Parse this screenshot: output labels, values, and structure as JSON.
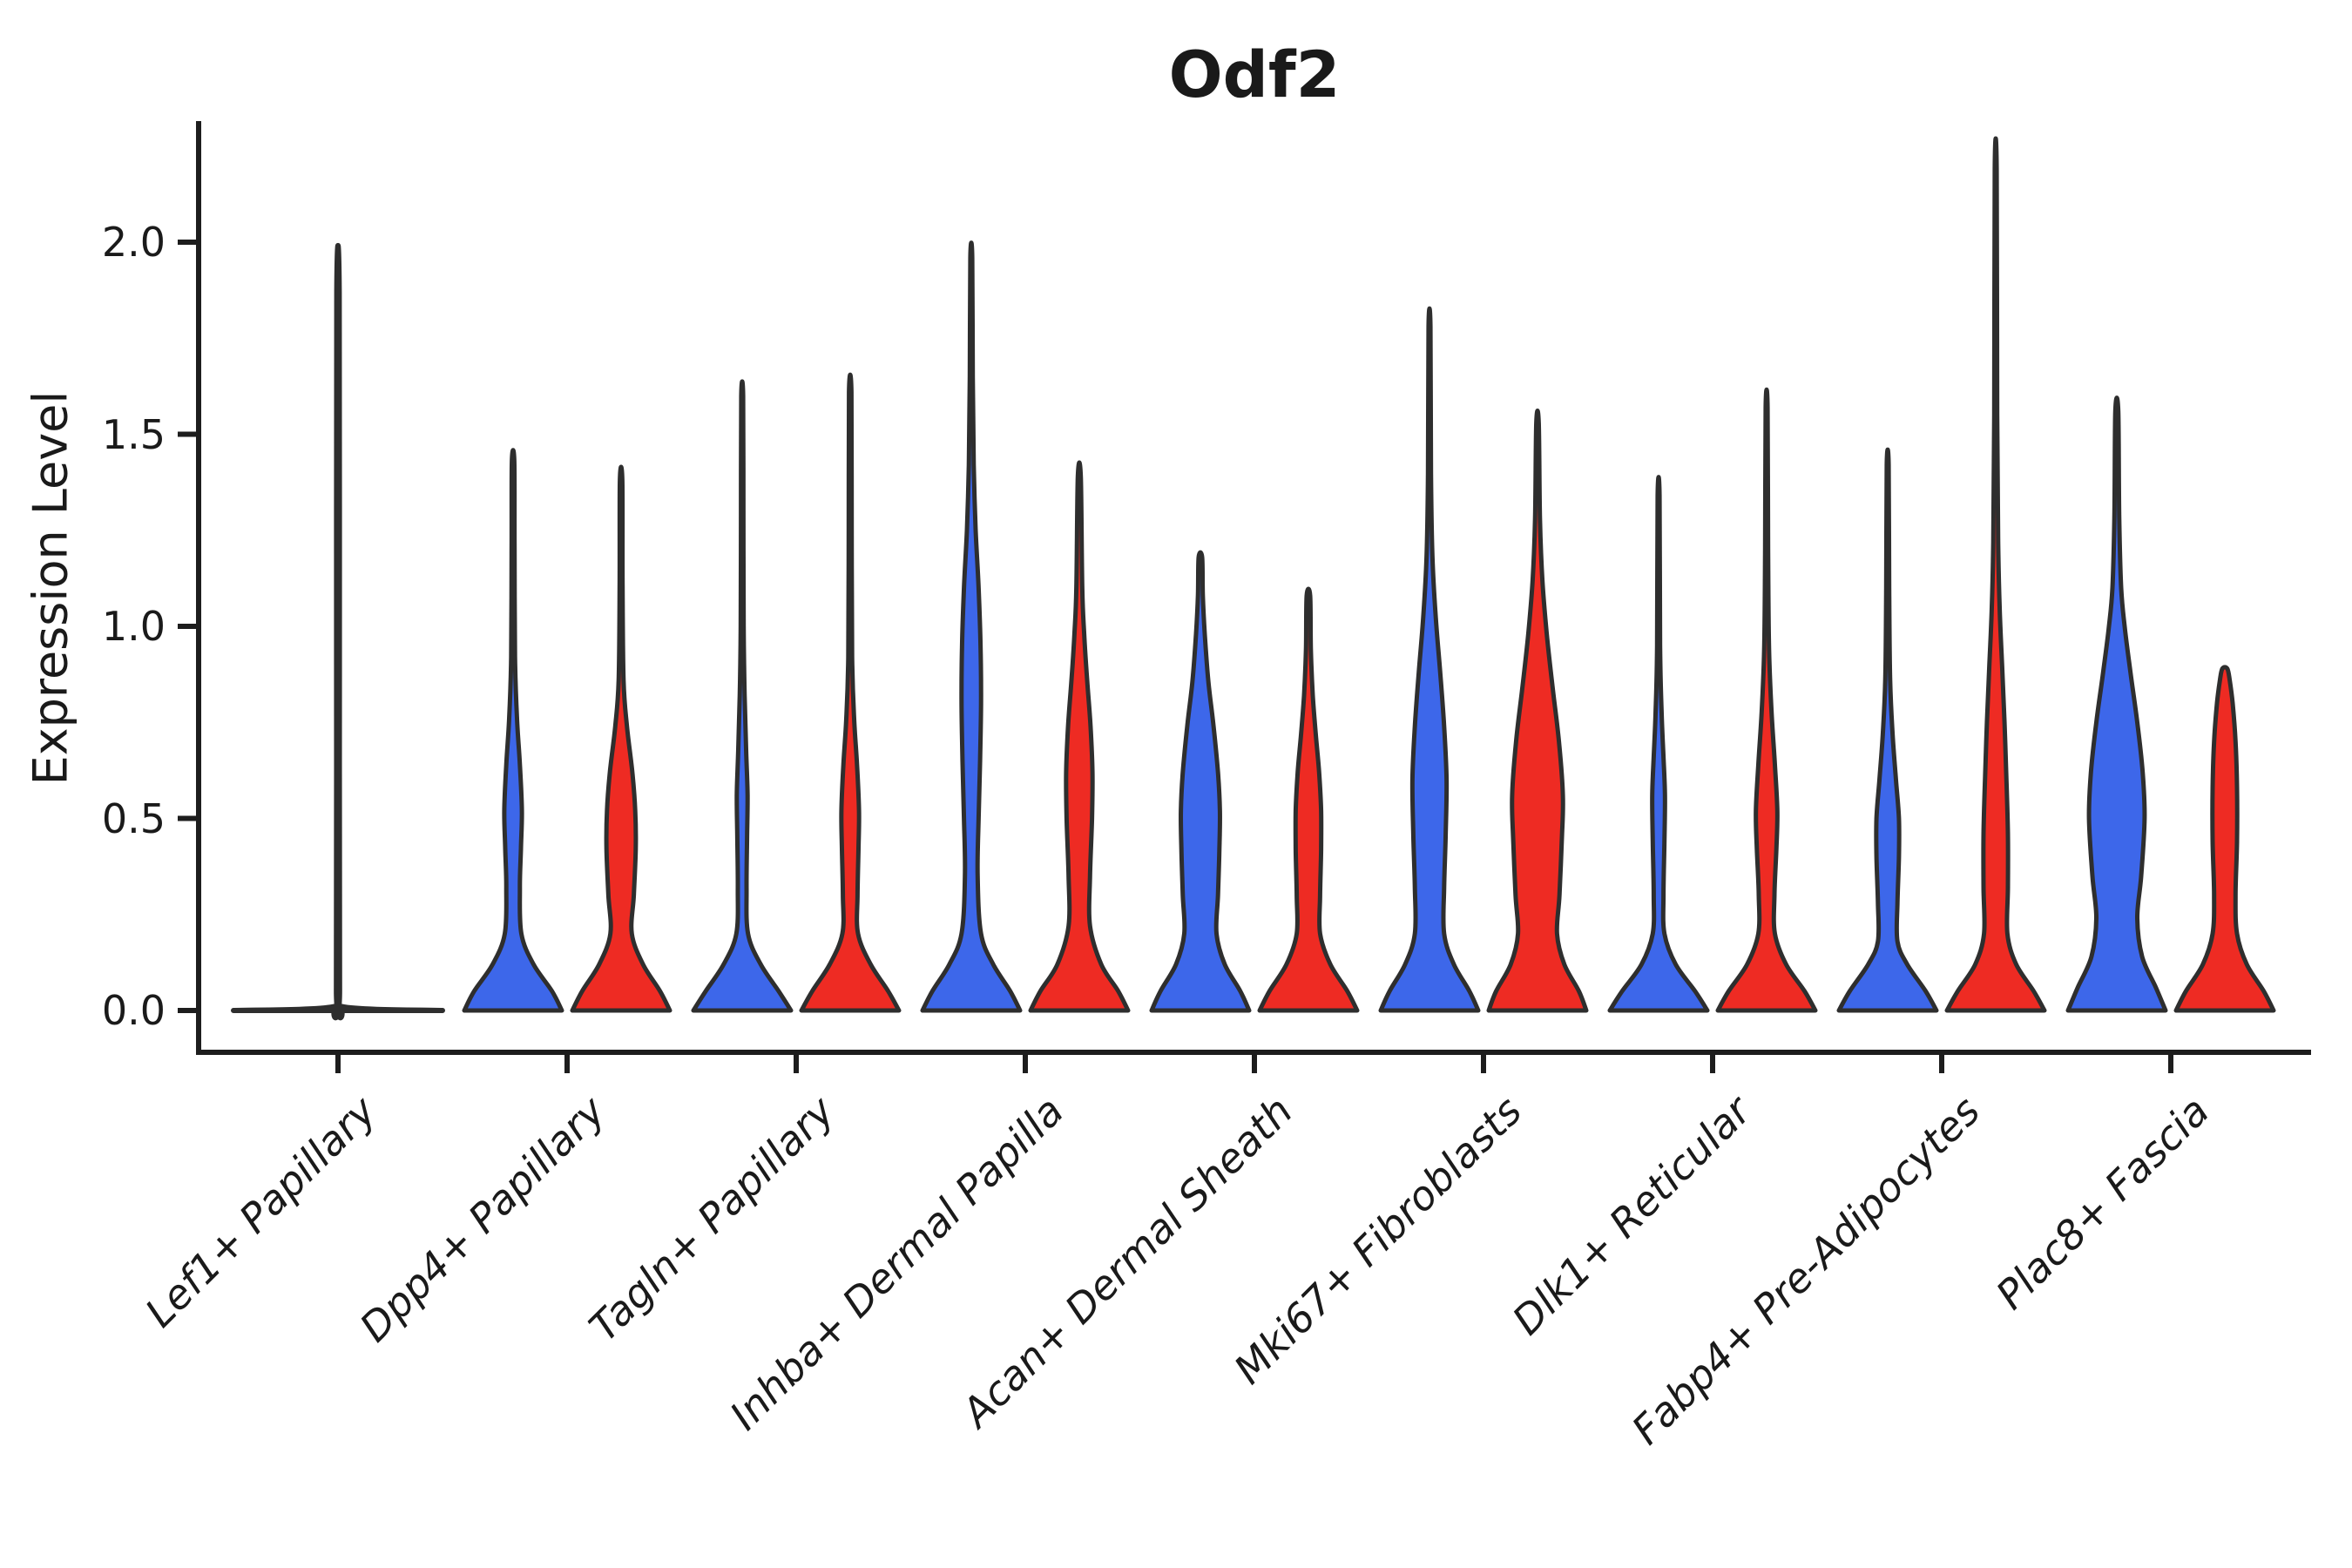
{
  "title": "Odf2",
  "ylabel": "Expression Level",
  "colors": {
    "blue": "#3D67EA",
    "red": "#EE2B23",
    "outline": "#2E2E2E",
    "axis": "#1d1d1d"
  },
  "chart_data": {
    "type": "violin",
    "title": "Odf2",
    "ylabel": "Expression Level",
    "ylim": [
      -0.06,
      2.31
    ],
    "yticks": [
      0,
      0.5,
      1,
      1.5,
      2
    ],
    "ytick_labels": [
      "0.0",
      "0.5",
      "1.0",
      "1.5",
      "2.0"
    ],
    "grid": false,
    "legend": "none",
    "categories": [
      "Lef1+ Papillary",
      "Dpp4+ Papillary",
      "Tagln+ Papillary",
      "Inhba+ Dermal Papilla",
      "Acan+ Dermal Sheath",
      "Mki67+ Fibroblasts",
      "Dlk1+ Reticular",
      "Fabp4+ Pre-Adipocytes",
      "Plac8+ Fascia"
    ],
    "series": [
      {
        "name": "blue",
        "color": "#3D67EA"
      },
      {
        "name": "red",
        "color": "#EE2B23"
      }
    ],
    "groups": [
      {
        "category": "Lef1+ Papillary",
        "violins": [
          {
            "series": "single",
            "collapsed": true,
            "max": 1.87,
            "profile": [
              [
                0,
                1
              ],
              [
                0.01,
                0.04
              ],
              [
                0.06,
                0.015
              ],
              [
                0.9,
                0.013
              ],
              [
                1.87,
                0.012
              ]
            ]
          }
        ]
      },
      {
        "category": "Dpp4+ Papillary",
        "violins": [
          {
            "series": "blue",
            "max": 1.43,
            "profile": [
              [
                0,
                1
              ],
              [
                0.05,
                0.8
              ],
              [
                0.12,
                0.42
              ],
              [
                0.2,
                0.17
              ],
              [
                0.32,
                0.14
              ],
              [
                0.42,
                0.16
              ],
              [
                0.52,
                0.18
              ],
              [
                0.64,
                0.14
              ],
              [
                0.76,
                0.08
              ],
              [
                0.92,
                0.04
              ],
              [
                1.2,
                0.03
              ],
              [
                1.43,
                0.025
              ]
            ]
          },
          {
            "series": "red",
            "max": 1.38,
            "profile": [
              [
                0,
                1
              ],
              [
                0.05,
                0.8
              ],
              [
                0.12,
                0.45
              ],
              [
                0.2,
                0.22
              ],
              [
                0.3,
                0.26
              ],
              [
                0.42,
                0.3
              ],
              [
                0.52,
                0.29
              ],
              [
                0.62,
                0.23
              ],
              [
                0.74,
                0.12
              ],
              [
                0.86,
                0.05
              ],
              [
                1.1,
                0.03
              ],
              [
                1.38,
                0.025
              ]
            ]
          }
        ]
      },
      {
        "category": "Tagln+ Papillary",
        "violins": [
          {
            "series": "blue",
            "max": 1.6,
            "profile": [
              [
                0,
                1
              ],
              [
                0.05,
                0.75
              ],
              [
                0.12,
                0.38
              ],
              [
                0.2,
                0.12
              ],
              [
                0.32,
                0.09
              ],
              [
                0.45,
                0.1
              ],
              [
                0.56,
                0.11
              ],
              [
                0.68,
                0.08
              ],
              [
                0.82,
                0.05
              ],
              [
                1.0,
                0.03
              ],
              [
                1.3,
                0.025
              ],
              [
                1.6,
                0.02
              ]
            ]
          },
          {
            "series": "red",
            "max": 1.61,
            "profile": [
              [
                0,
                1
              ],
              [
                0.05,
                0.78
              ],
              [
                0.12,
                0.42
              ],
              [
                0.2,
                0.16
              ],
              [
                0.3,
                0.15
              ],
              [
                0.42,
                0.17
              ],
              [
                0.52,
                0.18
              ],
              [
                0.64,
                0.14
              ],
              [
                0.76,
                0.08
              ],
              [
                0.92,
                0.04
              ],
              [
                1.25,
                0.03
              ],
              [
                1.61,
                0.025
              ]
            ]
          }
        ]
      },
      {
        "category": "Inhba+ Dermal Papilla",
        "violins": [
          {
            "series": "blue",
            "max": 1.96,
            "profile": [
              [
                0,
                1
              ],
              [
                0.05,
                0.8
              ],
              [
                0.12,
                0.45
              ],
              [
                0.2,
                0.2
              ],
              [
                0.35,
                0.13
              ],
              [
                0.5,
                0.15
              ],
              [
                0.65,
                0.18
              ],
              [
                0.8,
                0.2
              ],
              [
                0.95,
                0.19
              ],
              [
                1.1,
                0.15
              ],
              [
                1.25,
                0.09
              ],
              [
                1.42,
                0.05
              ],
              [
                1.65,
                0.03
              ],
              [
                1.96,
                0.02
              ]
            ]
          },
          {
            "series": "red",
            "max": 1.39,
            "profile": [
              [
                0,
                1
              ],
              [
                0.05,
                0.8
              ],
              [
                0.12,
                0.45
              ],
              [
                0.22,
                0.22
              ],
              [
                0.35,
                0.22
              ],
              [
                0.5,
                0.26
              ],
              [
                0.62,
                0.27
              ],
              [
                0.74,
                0.23
              ],
              [
                0.86,
                0.16
              ],
              [
                0.98,
                0.1
              ],
              [
                1.1,
                0.06
              ],
              [
                1.39,
                0.03
              ]
            ]
          }
        ]
      },
      {
        "category": "Acan+ Dermal Sheath",
        "violins": [
          {
            "series": "blue",
            "max": 1.18,
            "profile": [
              [
                0,
                1
              ],
              [
                0.05,
                0.82
              ],
              [
                0.12,
                0.5
              ],
              [
                0.2,
                0.33
              ],
              [
                0.3,
                0.36
              ],
              [
                0.42,
                0.39
              ],
              [
                0.52,
                0.4
              ],
              [
                0.62,
                0.36
              ],
              [
                0.74,
                0.27
              ],
              [
                0.86,
                0.16
              ],
              [
                0.98,
                0.09
              ],
              [
                1.08,
                0.05
              ],
              [
                1.18,
                0.035
              ]
            ]
          },
          {
            "series": "red",
            "max": 1.08,
            "profile": [
              [
                0,
                1
              ],
              [
                0.05,
                0.8
              ],
              [
                0.12,
                0.45
              ],
              [
                0.2,
                0.24
              ],
              [
                0.3,
                0.24
              ],
              [
                0.42,
                0.26
              ],
              [
                0.52,
                0.26
              ],
              [
                0.62,
                0.22
              ],
              [
                0.72,
                0.15
              ],
              [
                0.82,
                0.09
              ],
              [
                0.94,
                0.05
              ],
              [
                1.08,
                0.035
              ]
            ]
          }
        ]
      },
      {
        "category": "Mki67+ Fibroblasts",
        "violins": [
          {
            "series": "blue",
            "max": 1.78,
            "profile": [
              [
                0,
                1
              ],
              [
                0.05,
                0.82
              ],
              [
                0.12,
                0.5
              ],
              [
                0.2,
                0.3
              ],
              [
                0.32,
                0.3
              ],
              [
                0.45,
                0.33
              ],
              [
                0.6,
                0.35
              ],
              [
                0.74,
                0.3
              ],
              [
                0.88,
                0.22
              ],
              [
                1.02,
                0.13
              ],
              [
                1.18,
                0.06
              ],
              [
                1.4,
                0.03
              ],
              [
                1.78,
                0.02
              ]
            ]
          },
          {
            "series": "red",
            "max": 1.53,
            "profile": [
              [
                0,
                1
              ],
              [
                0.05,
                0.85
              ],
              [
                0.12,
                0.55
              ],
              [
                0.2,
                0.4
              ],
              [
                0.3,
                0.45
              ],
              [
                0.45,
                0.5
              ],
              [
                0.56,
                0.52
              ],
              [
                0.7,
                0.44
              ],
              [
                0.84,
                0.31
              ],
              [
                0.98,
                0.19
              ],
              [
                1.12,
                0.1
              ],
              [
                1.28,
                0.05
              ],
              [
                1.53,
                0.025
              ]
            ]
          }
        ]
      },
      {
        "category": "Dlk1+ Reticular",
        "violins": [
          {
            "series": "blue",
            "max": 1.34,
            "profile": [
              [
                0,
                1
              ],
              [
                0.05,
                0.75
              ],
              [
                0.12,
                0.35
              ],
              [
                0.2,
                0.12
              ],
              [
                0.3,
                0.1
              ],
              [
                0.44,
                0.12
              ],
              [
                0.56,
                0.13
              ],
              [
                0.66,
                0.1
              ],
              [
                0.78,
                0.06
              ],
              [
                0.95,
                0.03
              ],
              [
                1.34,
                0.02
              ]
            ]
          },
          {
            "series": "red",
            "max": 1.57,
            "profile": [
              [
                0,
                1
              ],
              [
                0.05,
                0.78
              ],
              [
                0.12,
                0.4
              ],
              [
                0.2,
                0.17
              ],
              [
                0.3,
                0.16
              ],
              [
                0.42,
                0.2
              ],
              [
                0.52,
                0.22
              ],
              [
                0.64,
                0.17
              ],
              [
                0.78,
                0.1
              ],
              [
                0.94,
                0.05
              ],
              [
                1.2,
                0.03
              ],
              [
                1.57,
                0.02
              ]
            ]
          }
        ]
      },
      {
        "category": "Fabp4+ Pre-Adipocytes",
        "violins": [
          {
            "series": "blue",
            "max": 1.42,
            "profile": [
              [
                0,
                1
              ],
              [
                0.05,
                0.78
              ],
              [
                0.12,
                0.4
              ],
              [
                0.18,
                0.2
              ],
              [
                0.28,
                0.2
              ],
              [
                0.4,
                0.23
              ],
              [
                0.5,
                0.23
              ],
              [
                0.6,
                0.17
              ],
              [
                0.72,
                0.1
              ],
              [
                0.86,
                0.05
              ],
              [
                1.1,
                0.03
              ],
              [
                1.42,
                0.02
              ]
            ]
          },
          {
            "series": "red",
            "max": 2.19,
            "profile": [
              [
                0,
                1
              ],
              [
                0.05,
                0.78
              ],
              [
                0.12,
                0.42
              ],
              [
                0.2,
                0.24
              ],
              [
                0.32,
                0.25
              ],
              [
                0.46,
                0.25
              ],
              [
                0.6,
                0.22
              ],
              [
                0.75,
                0.18
              ],
              [
                0.9,
                0.13
              ],
              [
                1.05,
                0.08
              ],
              [
                1.22,
                0.05
              ],
              [
                1.55,
                0.03
              ],
              [
                2.19,
                0.02
              ]
            ]
          }
        ]
      },
      {
        "category": "Plac8+ Fascia",
        "violins": [
          {
            "series": "blue",
            "max": 1.56,
            "profile": [
              [
                0,
                1
              ],
              [
                0.06,
                0.8
              ],
              [
                0.14,
                0.52
              ],
              [
                0.24,
                0.42
              ],
              [
                0.35,
                0.5
              ],
              [
                0.5,
                0.57
              ],
              [
                0.62,
                0.53
              ],
              [
                0.75,
                0.42
              ],
              [
                0.88,
                0.28
              ],
              [
                1.0,
                0.16
              ],
              [
                1.1,
                0.09
              ],
              [
                1.28,
                0.05
              ],
              [
                1.56,
                0.03
              ]
            ]
          },
          {
            "series": "red",
            "max": 0.89,
            "profile": [
              [
                0,
                1
              ],
              [
                0.05,
                0.8
              ],
              [
                0.12,
                0.45
              ],
              [
                0.2,
                0.25
              ],
              [
                0.3,
                0.22
              ],
              [
                0.44,
                0.25
              ],
              [
                0.58,
                0.25
              ],
              [
                0.7,
                0.22
              ],
              [
                0.8,
                0.16
              ],
              [
                0.86,
                0.1
              ],
              [
                0.89,
                0.05
              ]
            ]
          }
        ]
      }
    ]
  }
}
